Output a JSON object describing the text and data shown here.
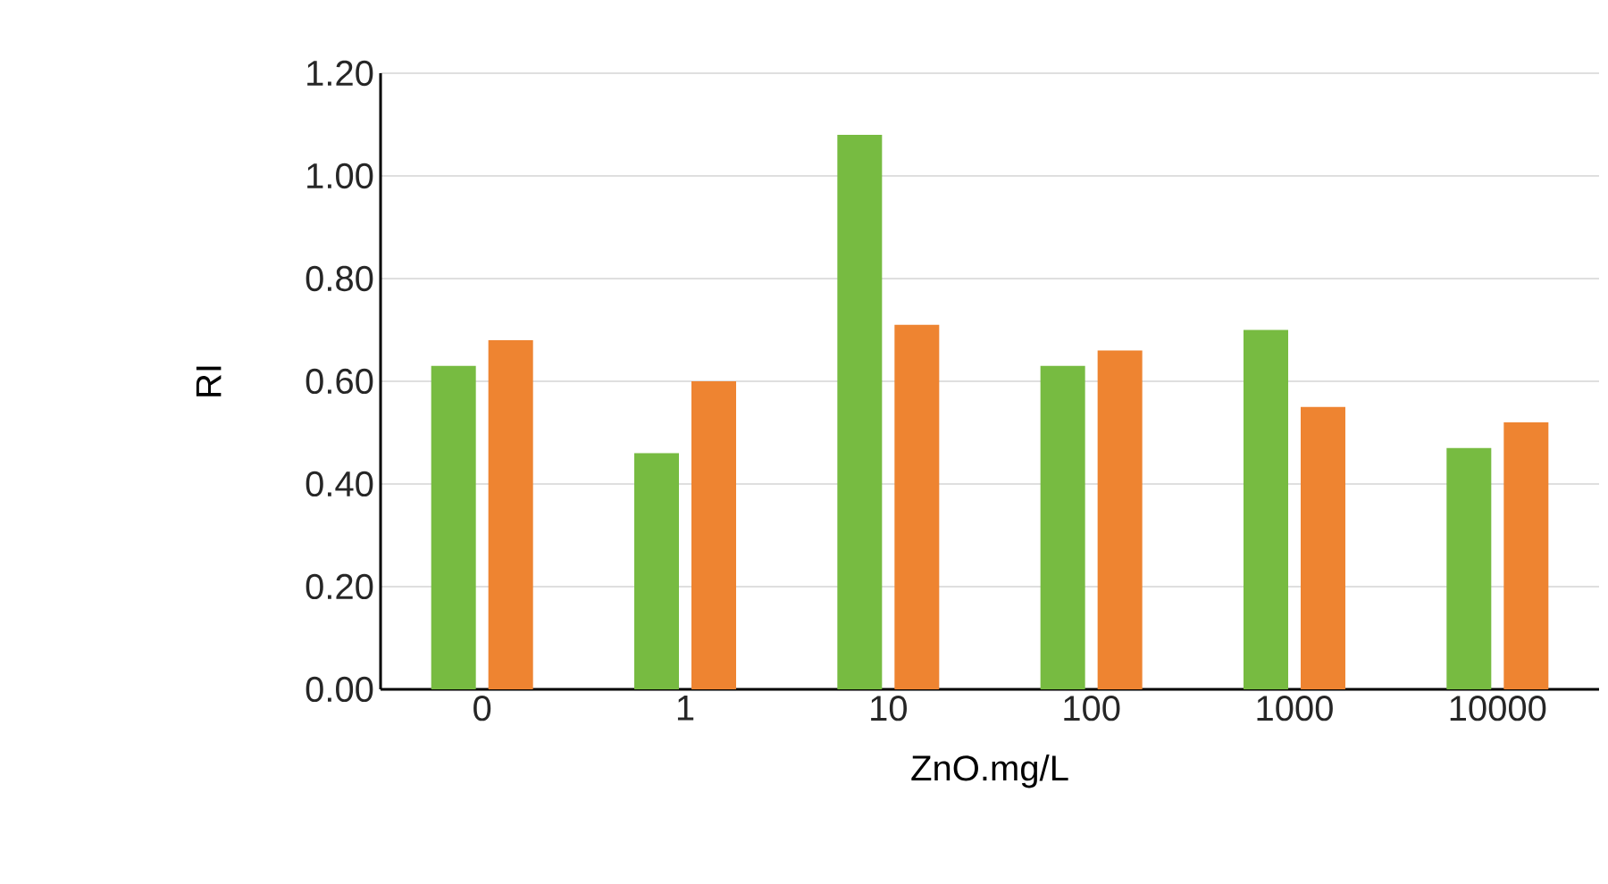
{
  "chart_data": {
    "type": "bar",
    "xlabel": "ZnO.mg/L",
    "ylabel": "RI",
    "categories": [
      "0",
      "1",
      "10",
      "100",
      "1000",
      "10000"
    ],
    "series": [
      {
        "color": "#77bb41",
        "values": [
          0.63,
          0.46,
          1.08,
          0.63,
          0.7,
          0.47
        ]
      },
      {
        "color": "#ee8431",
        "values": [
          0.68,
          0.6,
          0.71,
          0.66,
          0.55,
          0.52
        ]
      }
    ],
    "ylim": [
      0,
      1.2
    ],
    "yticks": [
      {
        "value": 0,
        "label": "0.00"
      },
      {
        "value": 0.2,
        "label": "0.20"
      },
      {
        "value": 0.4,
        "label": "0.40"
      },
      {
        "value": 0.6,
        "label": "0.60"
      },
      {
        "value": 0.8,
        "label": "0.80"
      },
      {
        "value": 1.0,
        "label": "1.00"
      },
      {
        "value": 1.2,
        "label": "1.20"
      }
    ],
    "grid": "y"
  }
}
